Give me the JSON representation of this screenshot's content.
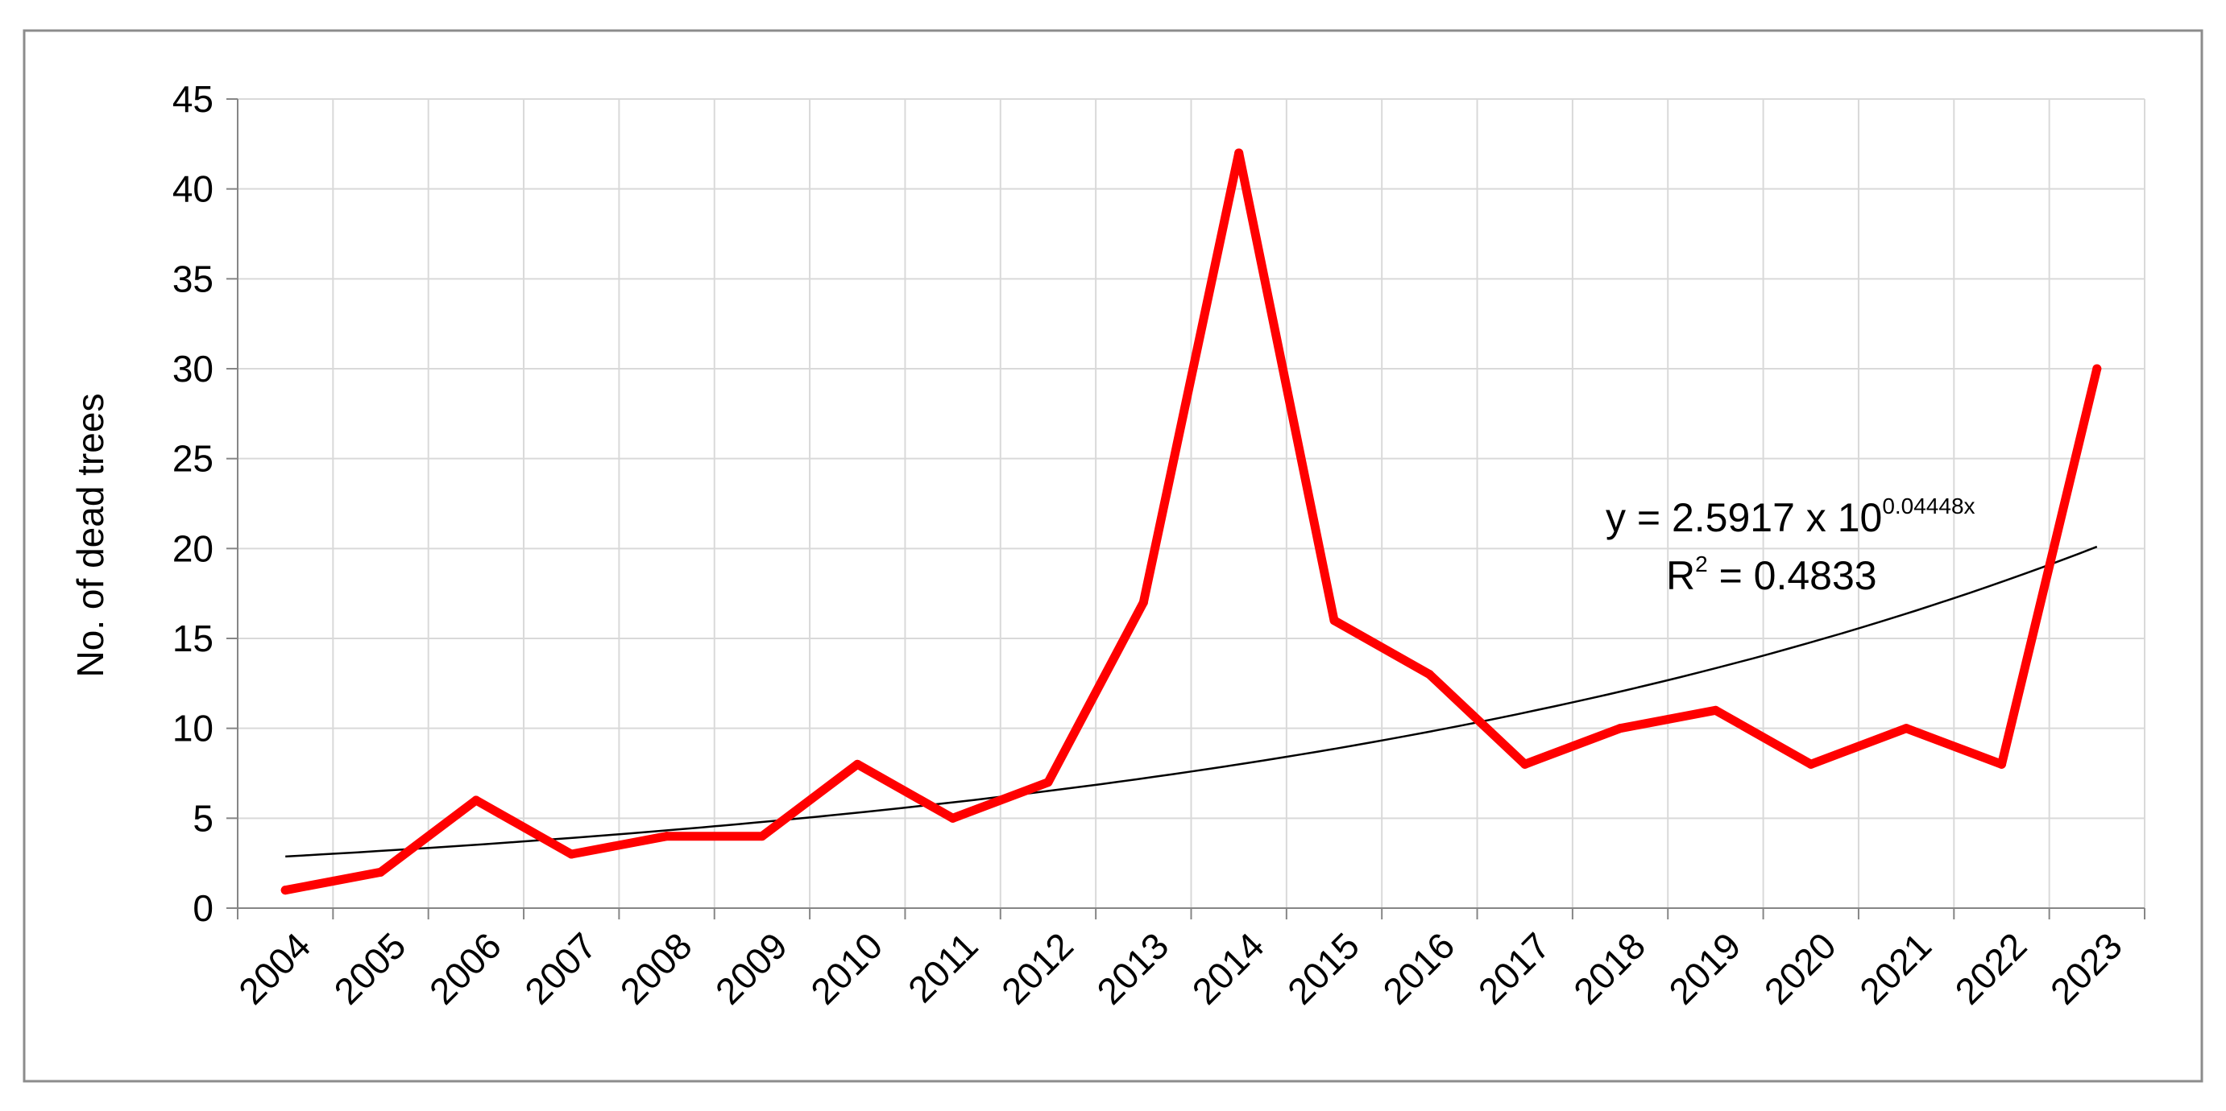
{
  "chart_data": {
    "type": "line",
    "title": "",
    "xlabel": "",
    "ylabel": "No. of dead trees",
    "ylim": [
      0,
      45
    ],
    "yticks": [
      0,
      5,
      10,
      15,
      20,
      25,
      30,
      35,
      40,
      45
    ],
    "grid": true,
    "legend": "none",
    "categories": [
      "2004",
      "2005",
      "2006",
      "2007",
      "2008",
      "2009",
      "2010",
      "2011",
      "2012",
      "2013",
      "2014",
      "2015",
      "2016",
      "2017",
      "2018",
      "2019",
      "2020",
      "2021",
      "2022",
      "2023"
    ],
    "series": [
      {
        "color": "#ff0000",
        "values": [
          1,
          2,
          6,
          3,
          4,
          4,
          8,
          5,
          7,
          17,
          42,
          16,
          13,
          8,
          10,
          11,
          8,
          10,
          8,
          30
        ]
      }
    ],
    "trendline": {
      "type": "exponential",
      "color": "#000000",
      "coefficient": 2.5917,
      "exponent_rate": 0.04448,
      "equation_prefix": "y = 2.5917 x 10",
      "equation_exponent": "0.04448x",
      "r2_label": "R",
      "r2_sup": "2",
      "r2_value": " = 0.4833"
    }
  }
}
